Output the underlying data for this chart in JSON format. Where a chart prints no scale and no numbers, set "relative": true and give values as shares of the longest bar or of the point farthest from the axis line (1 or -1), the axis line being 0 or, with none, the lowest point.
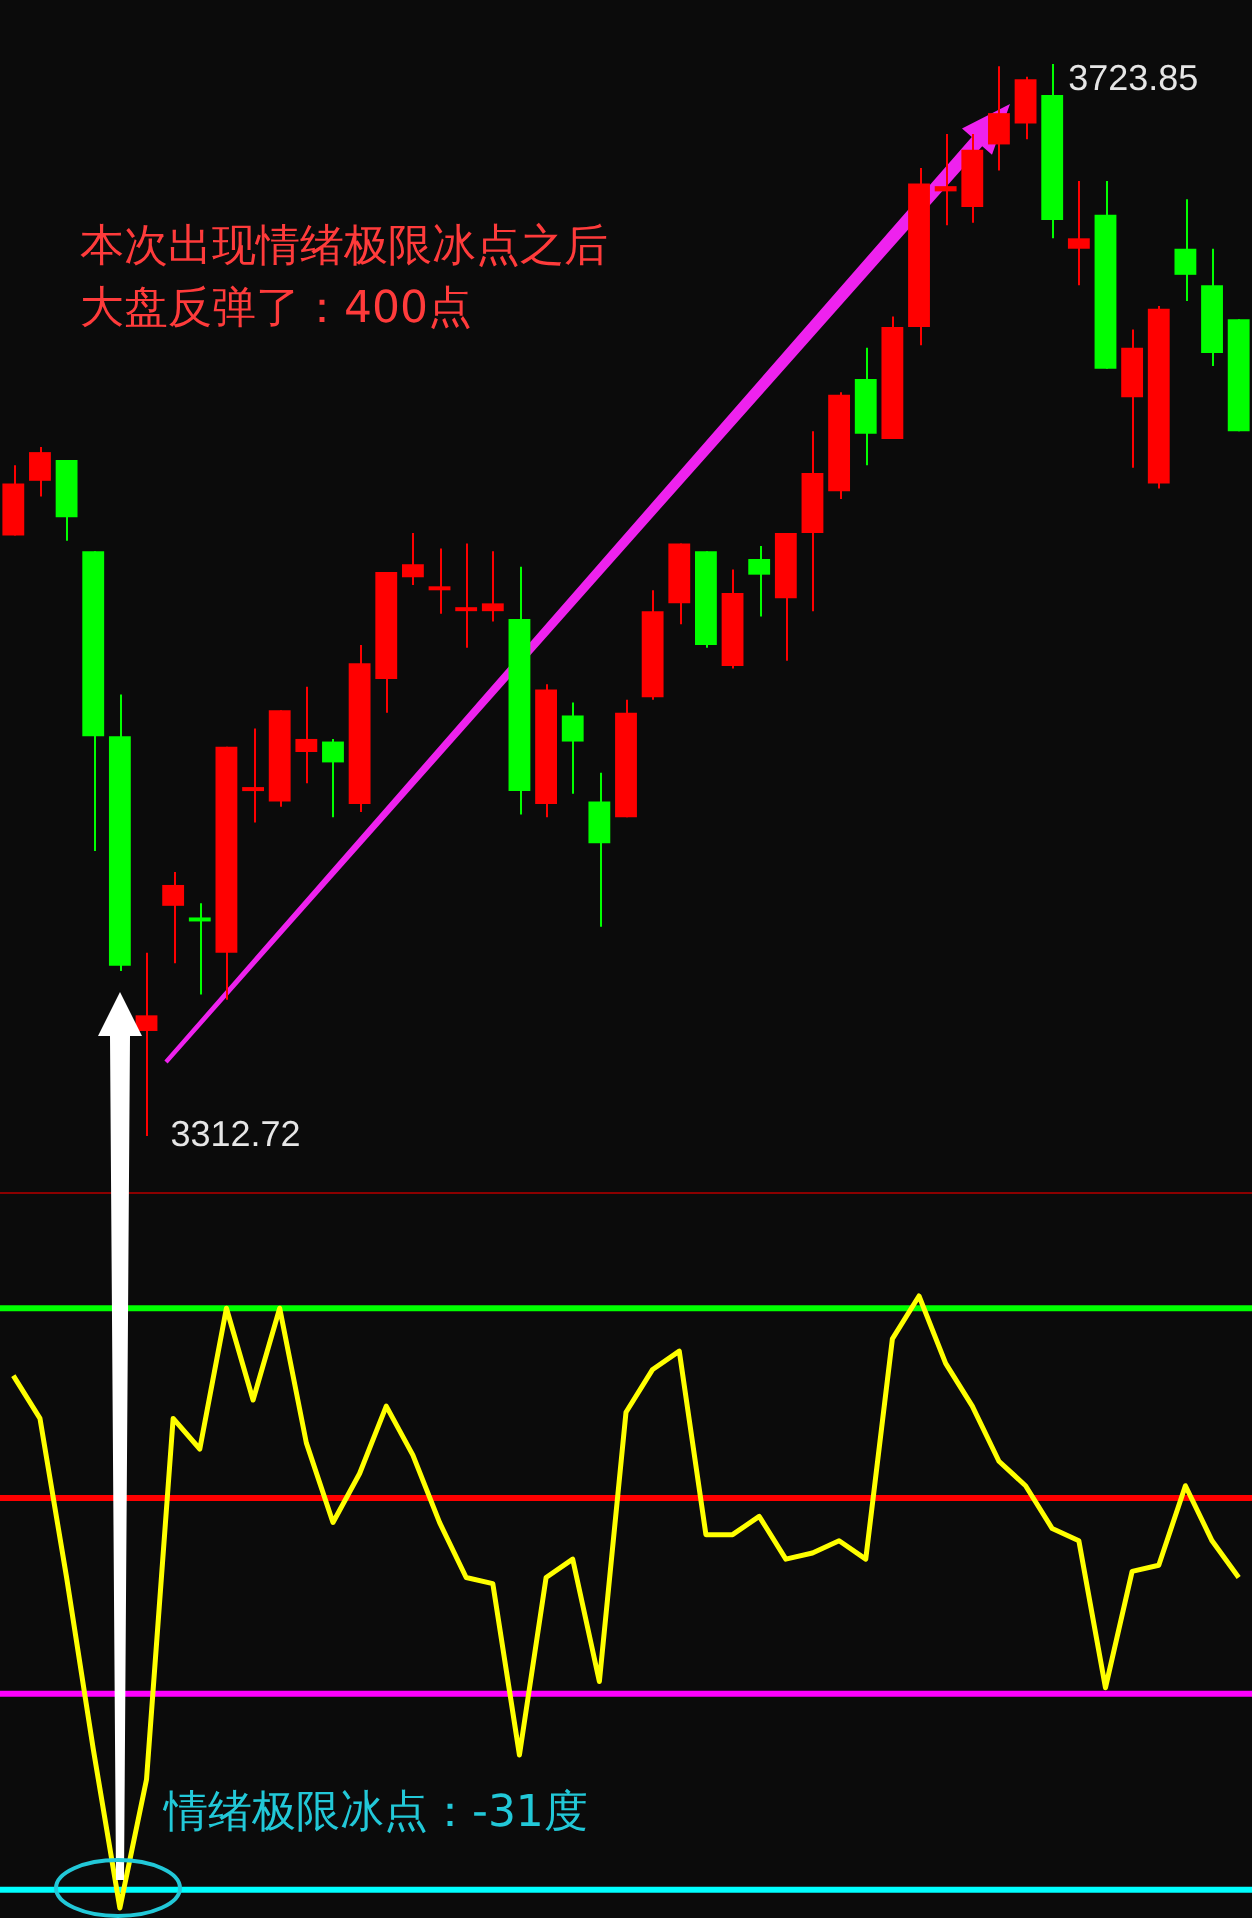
{
  "chart_data": [
    {
      "type": "candlestick",
      "tick_labels": false,
      "categories": [
        null,
        null,
        null,
        null,
        null,
        null,
        null,
        null,
        null,
        null,
        null,
        null,
        null,
        null,
        null,
        null,
        null,
        null,
        null,
        null,
        null,
        null,
        null,
        null,
        null,
        null,
        null,
        null,
        null,
        null,
        null,
        null,
        null,
        null,
        null,
        null,
        null,
        null,
        null,
        null,
        null,
        null,
        null,
        null,
        null,
        null,
        null
      ],
      "ohlc": [
        [
          3543,
          3570,
          3543,
          3563
        ],
        [
          3564,
          3577,
          3558,
          3575
        ],
        [
          3572,
          3572,
          3541,
          3550
        ],
        [
          3537,
          3537,
          3422,
          3466
        ],
        [
          3466,
          3482,
          3376,
          3378
        ],
        [
          3353,
          3383,
          3312.72,
          3359
        ],
        [
          3401,
          3414,
          3379,
          3409
        ],
        [
          3396,
          3402,
          3367,
          3395
        ],
        [
          3383,
          3462,
          3365,
          3462
        ],
        [
          3445,
          3469,
          3433,
          3446
        ],
        [
          3441,
          3476,
          3439,
          3476
        ],
        [
          3460,
          3485,
          3448,
          3465
        ],
        [
          3464,
          3465,
          3435,
          3456
        ],
        [
          3440,
          3501,
          3437,
          3494
        ],
        [
          3488,
          3529,
          3475,
          3529
        ],
        [
          3527,
          3544,
          3524,
          3532
        ],
        [
          3522,
          3538,
          3513,
          3523
        ],
        [
          3514,
          3540,
          3500,
          3515
        ],
        [
          3514,
          3537,
          3510,
          3517
        ],
        [
          3511,
          3531,
          3436,
          3445
        ],
        [
          3440,
          3486,
          3435,
          3484
        ],
        [
          3474,
          3479,
          3444,
          3464
        ],
        [
          3441,
          3452,
          3393,
          3425
        ],
        [
          3435,
          3480,
          3435,
          3475
        ],
        [
          3481,
          3522,
          3480,
          3514
        ],
        [
          3517,
          3540,
          3509,
          3540
        ],
        [
          3537,
          3537,
          3500,
          3501
        ],
        [
          3493,
          3530,
          3492,
          3521
        ],
        [
          3534,
          3539,
          3512,
          3528
        ],
        [
          3519,
          3544,
          3495,
          3544
        ],
        [
          3544,
          3583,
          3514,
          3567
        ],
        [
          3560,
          3598,
          3557,
          3597
        ],
        [
          3603,
          3615,
          3570,
          3582
        ],
        [
          3580,
          3627,
          3580,
          3623
        ],
        [
          3623,
          3684,
          3616,
          3678
        ],
        [
          3675,
          3697,
          3662,
          3677
        ],
        [
          3669,
          3697,
          3663,
          3691
        ],
        [
          3693,
          3723,
          3683,
          3705
        ],
        [
          3701,
          3719,
          3695,
          3718
        ],
        [
          3712,
          3723.85,
          3657,
          3664
        ],
        [
          3653,
          3679,
          3639,
          3657
        ],
        [
          3666,
          3679,
          3607,
          3607
        ],
        [
          3596,
          3622,
          3569,
          3615
        ],
        [
          3563,
          3631,
          3561,
          3630
        ],
        [
          3653,
          3672,
          3633,
          3643
        ],
        [
          3639,
          3653,
          3608,
          3613
        ],
        [
          3626,
          3626,
          3583,
          3583
        ]
      ],
      "colors": [
        "#ff0000",
        "#ff0000",
        "#00ff00",
        "#00ff00",
        "#00ff00",
        "#ff0000",
        "#ff0000",
        "#00ff00",
        "#ff0000",
        "#ff0000",
        "#ff0000",
        "#ff0000",
        "#00ff00",
        "#ff0000",
        "#ff0000",
        "#ff0000",
        "#ff0000",
        "#ff0000",
        "#ff0000",
        "#00ff00",
        "#ff0000",
        "#00ff00",
        "#00ff00",
        "#ff0000",
        "#ff0000",
        "#ff0000",
        "#00ff00",
        "#ff0000",
        "#00ff00",
        "#ff0000",
        "#ff0000",
        "#ff0000",
        "#00ff00",
        "#ff0000",
        "#ff0000",
        "#ff0000",
        "#ff0000",
        "#ff0000",
        "#ff0000",
        "#00ff00",
        "#ff0000",
        "#00ff00",
        "#ff0000",
        "#ff0000",
        "#00ff00",
        "#00ff00",
        "#00ff00"
      ],
      "annotations": [
        "本次出现情绪极限冰点之后",
        "大盘反弹了：400点",
        "3723.85",
        "3312.72"
      ]
    },
    {
      "type": "line",
      "relative": true,
      "tick_labels": false,
      "categories": [
        null,
        null,
        null,
        null,
        null,
        null,
        null,
        null,
        null,
        null,
        null,
        null,
        null,
        null,
        null,
        null,
        null,
        null,
        null,
        null,
        null,
        null,
        null,
        null,
        null,
        null,
        null,
        null,
        null,
        null,
        null,
        null,
        null,
        null,
        null,
        null,
        null,
        null,
        null,
        null,
        null,
        null,
        null,
        null,
        null,
        null,
        null
      ],
      "series": [
        {
          "color": "#ffff00",
          "values": [
            0.87,
            0.8,
            0.54,
            0.26,
            0,
            0.21,
            0.8,
            0.75,
            0.98,
            0.83,
            0.98,
            0.76,
            0.63,
            0.71,
            0.82,
            0.74,
            0.63,
            0.54,
            0.53,
            0.25,
            0.54,
            0.57,
            0.37,
            0.81,
            0.88,
            0.91,
            0.61,
            0.61,
            0.64,
            0.57,
            0.58,
            0.6,
            0.57,
            0.93,
            1,
            0.89,
            0.82,
            0.73,
            0.69,
            0.62,
            0.6,
            0.36,
            0.55,
            0.56,
            0.69,
            0.6,
            0.54
          ]
        }
      ],
      "ref_lines": [
        {
          "axis": "y",
          "value": 0.98,
          "color": "#00ff00"
        },
        {
          "axis": "y",
          "value": 0.67,
          "color": "#ff0000"
        },
        {
          "axis": "y",
          "value": 0.35,
          "color": "#ff00ff"
        },
        {
          "axis": "y",
          "value": 0.03,
          "color": "#00ffff"
        }
      ],
      "annotations": [
        "情绪极限冰点：-31度"
      ]
    }
  ]
}
